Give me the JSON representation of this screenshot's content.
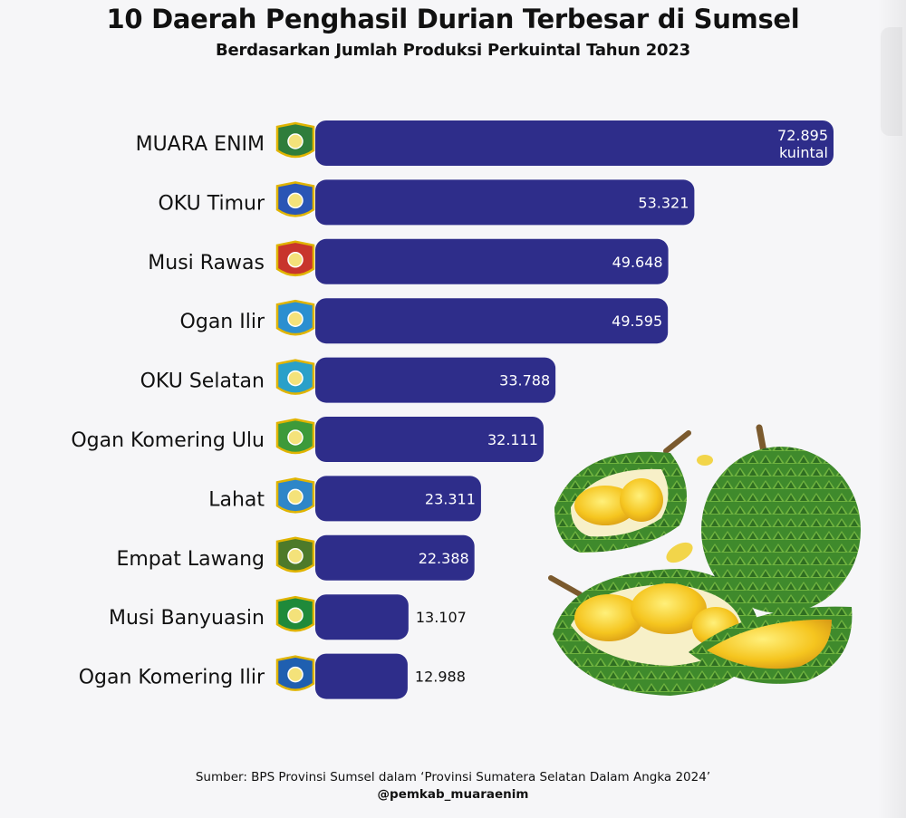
{
  "title": "10 Daerah Penghasil Durian Terbesar di Sumsel",
  "subtitle": "Berdasarkan Jumlah Produksi Perkuintal Tahun 2023",
  "footer": {
    "source": "Sumber: BPS Provinsi Sumsel dalam ‘Provinsi Sumatera Selatan Dalam Angka 2024’",
    "handle": "@pemkab_muaraenim"
  },
  "colors": {
    "bar": "#2e2d8a",
    "bar_label_inside": "#ffffff",
    "bar_label_outside": "#111111",
    "emblem_colors": [
      "#2f7d3b",
      "#2a55b5",
      "#c8352c",
      "#2b8fd0",
      "#2aa0c9",
      "#3d9a3a",
      "#2e86c8",
      "#4d7a2a",
      "#1f8a3a",
      "#1f5fb0"
    ]
  },
  "illustration": "durian-fruit-illustration",
  "chart_data": {
    "type": "bar",
    "orientation": "horizontal",
    "title": "10 Daerah Penghasil Durian Terbesar di Sumsel",
    "subtitle": "Berdasarkan Jumlah Produksi Perkuintal Tahun 2023",
    "categories": [
      "MUARA ENIM",
      "OKU Timur",
      "Musi Rawas",
      "Ogan Ilir",
      "OKU Selatan",
      "Ogan Komering Ulu",
      "Lahat",
      "Empat Lawang",
      "Musi Banyuasin",
      "Ogan Komering Ilir"
    ],
    "values": [
      72895,
      53321,
      49648,
      49595,
      33788,
      32111,
      23311,
      22388,
      13107,
      12988
    ],
    "value_labels": [
      "72.895",
      "53.321",
      "49.648",
      "49.595",
      "33.788",
      "32.111",
      "23.311",
      "22.388",
      "13.107",
      "12.988"
    ],
    "unit_label": "kuintal",
    "xlabel": "",
    "ylabel": "",
    "grid": false,
    "legend": "none"
  }
}
